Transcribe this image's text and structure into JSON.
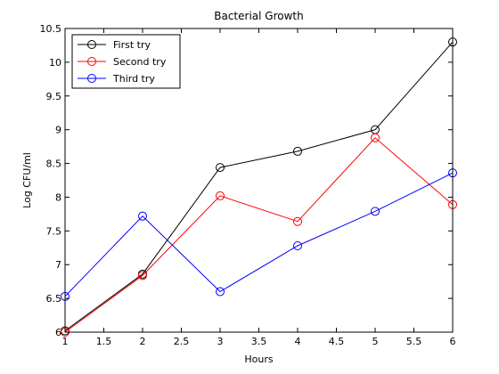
{
  "chart_data": {
    "type": "line",
    "title": "Bacterial Growth",
    "xlabel": "Hours",
    "ylabel": "Log CFU/ml",
    "xlim": [
      1,
      6
    ],
    "ylim": [
      6,
      10.5
    ],
    "xticks": [
      "1",
      "1.5",
      "2",
      "2.5",
      "3",
      "3.5",
      "4",
      "4.5",
      "5",
      "5.5",
      "6"
    ],
    "yticks": [
      "6",
      "6.5",
      "7",
      "7.5",
      "8",
      "8.5",
      "9",
      "9.5",
      "10",
      "10.5"
    ],
    "x": [
      1,
      2,
      3,
      4,
      5,
      6
    ],
    "grid": false,
    "legend_position": "top-left",
    "series": [
      {
        "name": "First try",
        "color": "#000000",
        "marker": "circle",
        "values": [
          6.02,
          6.86,
          8.44,
          8.68,
          9.0,
          10.3
        ]
      },
      {
        "name": "Second try",
        "color": "#ff0000",
        "marker": "circle",
        "values": [
          6.0,
          6.84,
          8.02,
          7.64,
          8.88,
          7.89
        ]
      },
      {
        "name": "Third try",
        "color": "#0000ff",
        "marker": "circle",
        "values": [
          6.53,
          7.72,
          6.6,
          7.28,
          7.79,
          8.36
        ]
      }
    ]
  }
}
